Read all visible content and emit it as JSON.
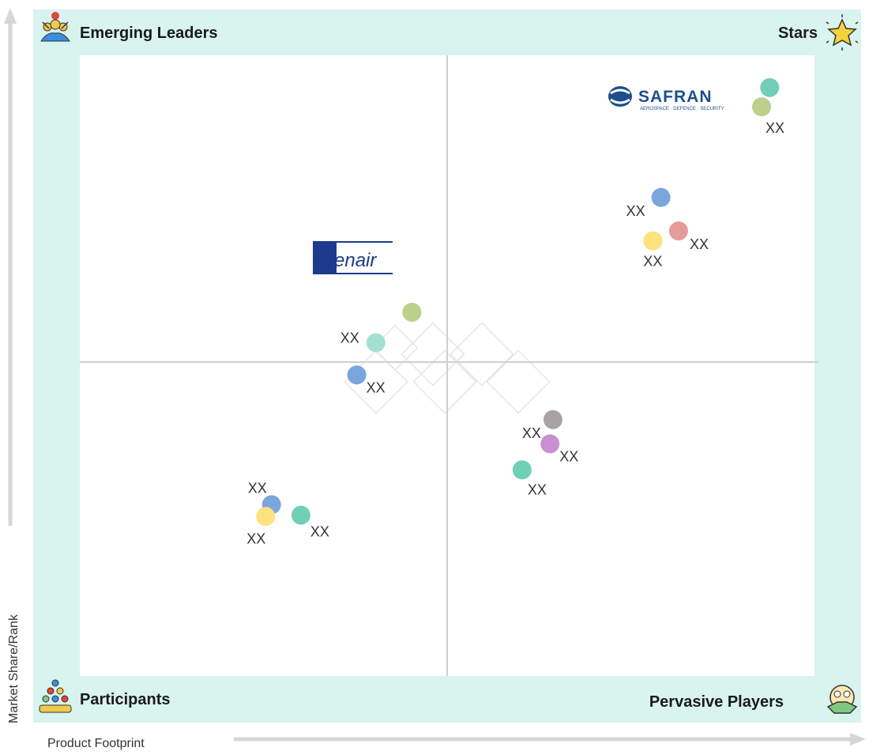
{
  "chart_data": {
    "type": "scatter",
    "xlabel": "Product Footprint",
    "ylabel": "Market Share/Rank",
    "quadrants": {
      "top_left": "Emerging Leaders",
      "top_right": "Stars",
      "bottom_left": "Participants",
      "bottom_right": "Pervasive Players"
    },
    "logos": {
      "safran": {
        "name": "SAFRAN",
        "tagline": "AEROSPACE · DEFENCE · SECURITY"
      },
      "glenair": {
        "name": "Glenair"
      }
    },
    "points": [
      {
        "label": "",
        "x": 0.939,
        "y": 0.948,
        "color": "#6fcfb7"
      },
      {
        "label": "XX",
        "x": 0.928,
        "y": 0.917,
        "color": "#bcd08c"
      },
      {
        "label": "XX",
        "x": 0.791,
        "y": 0.771,
        "color": "#7aa5dd"
      },
      {
        "label": "XX",
        "x": 0.815,
        "y": 0.717,
        "color": "#e69a9a"
      },
      {
        "label": "XX",
        "x": 0.78,
        "y": 0.701,
        "color": "#fde27d"
      },
      {
        "label": "",
        "x": 0.452,
        "y": 0.586,
        "color": "#bcd08c"
      },
      {
        "label": "XX",
        "x": 0.403,
        "y": 0.537,
        "color": "#a3e0d2"
      },
      {
        "label": "XX",
        "x": 0.377,
        "y": 0.485,
        "color": "#7aa5dd"
      },
      {
        "label": "XX",
        "x": 0.644,
        "y": 0.413,
        "color": "#a8a2a2"
      },
      {
        "label": "XX",
        "x": 0.64,
        "y": 0.374,
        "color": "#c990d0"
      },
      {
        "label": "XX",
        "x": 0.602,
        "y": 0.332,
        "color": "#6fcfb7"
      },
      {
        "label": "XX",
        "x": 0.261,
        "y": 0.276,
        "color": "#7aa5dd"
      },
      {
        "label": "XX",
        "x": 0.253,
        "y": 0.257,
        "color": "#fde27d"
      },
      {
        "label": "XX",
        "x": 0.301,
        "y": 0.259,
        "color": "#6fcfb7"
      }
    ],
    "xlim": [
      0,
      1
    ],
    "ylim": [
      0,
      1
    ],
    "grid": false
  },
  "colors": {
    "frame": "#d9f4ee",
    "plot_bg": "#ffffff",
    "divider": "#cfcfcf",
    "arrow": "#d6d6d6",
    "safran_blue": "#1f4e8c",
    "glenair_blue": "#1d3a8c"
  }
}
